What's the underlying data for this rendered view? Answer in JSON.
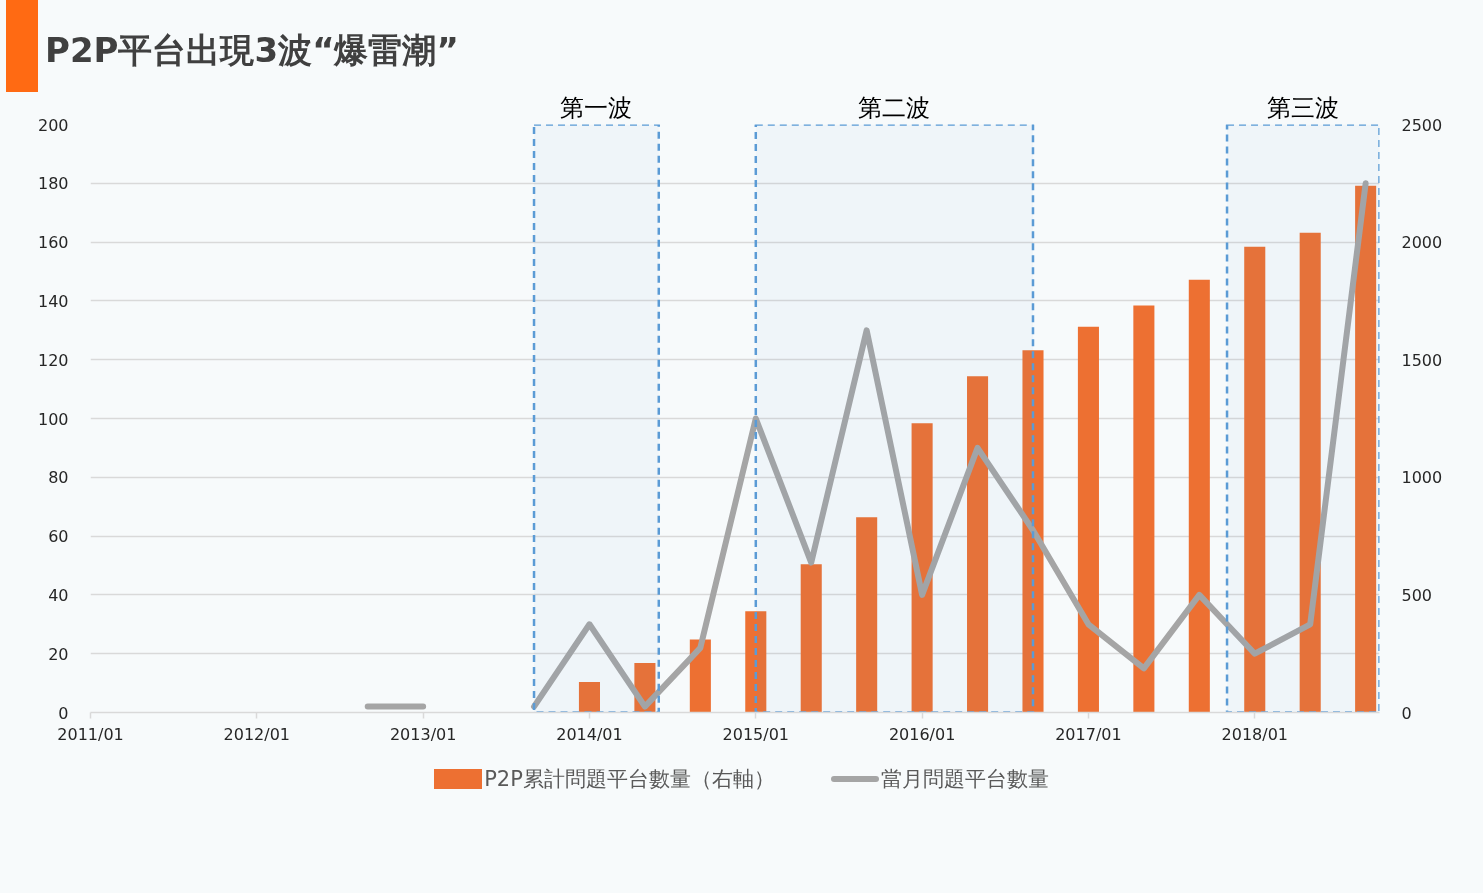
{
  "chart_data": {
    "type": "bar",
    "title": "P2P平台出現3波“爆雷潮”",
    "x": [
      "2012-09",
      "2013-01",
      "2013-05",
      "2013-09",
      "2014-01",
      "2014-05",
      "2014-09",
      "2015-01",
      "2015-05",
      "2015-09",
      "2016-01",
      "2016-05",
      "2016-09",
      "2017-01",
      "2017-05",
      "2017-09",
      "2018-01",
      "2018-05",
      "2018-09"
    ],
    "series": [
      {
        "name": "P2P累計問題平台數量（右軸）",
        "axis": "y2",
        "color": "#ed7032",
        "values": [
          null,
          null,
          null,
          null,
          130,
          210,
          310,
          430,
          630,
          830,
          1230,
          1430,
          1540,
          1640,
          1730,
          1840,
          1980,
          2040,
          2240
        ]
      },
      {
        "name": "當月問題平台數量",
        "type": "line",
        "color": "#a5a5a5",
        "values": [
          2,
          2,
          null,
          2,
          30,
          2,
          22,
          100,
          51,
          130,
          40,
          90,
          62,
          30,
          15,
          40,
          20,
          30,
          180
        ]
      }
    ],
    "xlim": [
      "2011-01",
      "2018-10"
    ],
    "xticks": [
      {
        "value": "2011-01",
        "label": "2011/01"
      },
      {
        "value": "2012-01",
        "label": "2012/01"
      },
      {
        "value": "2013-01",
        "label": "2013/01"
      },
      {
        "value": "2014-01",
        "label": "2014/01"
      },
      {
        "value": "2015-01",
        "label": "2015/01"
      },
      {
        "value": "2016-01",
        "label": "2016/01"
      },
      {
        "value": "2017-01",
        "label": "2017/01"
      },
      {
        "value": "2018-01",
        "label": "2018/01"
      }
    ],
    "ylim": [
      0,
      200
    ],
    "yticks": [
      0,
      20,
      40,
      60,
      80,
      100,
      120,
      140,
      160,
      180,
      200
    ],
    "y2lim": [
      0,
      2500
    ],
    "y2ticks": [
      0,
      500,
      1000,
      1500,
      2000,
      2500
    ],
    "bands": [
      {
        "axis": "x",
        "from": "2013-09",
        "to": "2014-06",
        "label": "第一波",
        "color": "#5b9bd5"
      },
      {
        "axis": "x",
        "from": "2015-01",
        "to": "2016-09",
        "label": "第二波",
        "color": "#5b9bd5"
      },
      {
        "axis": "x",
        "from": "2017-11",
        "to": "2018-10",
        "label": "第三波",
        "color": "#5b9bd5"
      }
    ],
    "grid": "y",
    "legend": "bottom",
    "line_style": "solid"
  }
}
